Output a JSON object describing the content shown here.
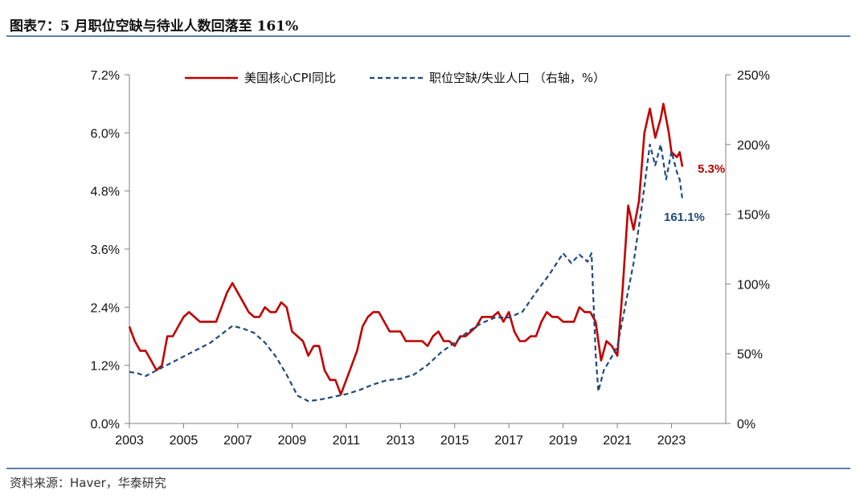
{
  "title": "图表7：5 月职位空缺与待业人数回落至 161%",
  "source": "资料来源：Haver，华泰研究",
  "colors": {
    "cpi": "#c00000",
    "ratio": "#1f497d"
  },
  "chart_data": {
    "type": "line",
    "title": "5 月职位空缺与待业人数回落至 161%",
    "x_ticks": [
      "2003",
      "2005",
      "2007",
      "2009",
      "2011",
      "2013",
      "2015",
      "2017",
      "2019",
      "2021",
      "2023"
    ],
    "xlim": [
      2003,
      2025
    ],
    "left_axis": {
      "ticks": [
        "0.0%",
        "1.2%",
        "2.4%",
        "3.6%",
        "4.8%",
        "6.0%",
        "7.2%"
      ],
      "ylim": [
        0,
        7.2
      ]
    },
    "right_axis": {
      "ticks": [
        "0%",
        "50%",
        "100%",
        "150%",
        "200%",
        "250%"
      ],
      "ylim": [
        0,
        250
      ]
    },
    "legend_location": "top-center",
    "series": [
      {
        "name": "美国核心CPI同比",
        "axis": "left",
        "style": "solid",
        "points": [
          [
            2003.0,
            2.0
          ],
          [
            2003.2,
            1.7
          ],
          [
            2003.4,
            1.5
          ],
          [
            2003.6,
            1.5
          ],
          [
            2003.8,
            1.3
          ],
          [
            2004.0,
            1.1
          ],
          [
            2004.2,
            1.2
          ],
          [
            2004.4,
            1.8
          ],
          [
            2004.6,
            1.8
          ],
          [
            2004.8,
            2.0
          ],
          [
            2005.0,
            2.2
          ],
          [
            2005.2,
            2.3
          ],
          [
            2005.4,
            2.2
          ],
          [
            2005.6,
            2.1
          ],
          [
            2005.8,
            2.1
          ],
          [
            2006.0,
            2.1
          ],
          [
            2006.2,
            2.1
          ],
          [
            2006.4,
            2.4
          ],
          [
            2006.6,
            2.7
          ],
          [
            2006.8,
            2.9
          ],
          [
            2007.0,
            2.7
          ],
          [
            2007.2,
            2.5
          ],
          [
            2007.4,
            2.3
          ],
          [
            2007.6,
            2.2
          ],
          [
            2007.8,
            2.2
          ],
          [
            2008.0,
            2.4
          ],
          [
            2008.2,
            2.3
          ],
          [
            2008.4,
            2.3
          ],
          [
            2008.6,
            2.5
          ],
          [
            2008.8,
            2.4
          ],
          [
            2009.0,
            1.9
          ],
          [
            2009.2,
            1.8
          ],
          [
            2009.4,
            1.7
          ],
          [
            2009.6,
            1.4
          ],
          [
            2009.8,
            1.6
          ],
          [
            2010.0,
            1.6
          ],
          [
            2010.2,
            1.1
          ],
          [
            2010.4,
            0.9
          ],
          [
            2010.6,
            0.9
          ],
          [
            2010.8,
            0.6
          ],
          [
            2011.0,
            0.9
          ],
          [
            2011.2,
            1.2
          ],
          [
            2011.4,
            1.5
          ],
          [
            2011.6,
            2.0
          ],
          [
            2011.8,
            2.2
          ],
          [
            2012.0,
            2.3
          ],
          [
            2012.2,
            2.3
          ],
          [
            2012.4,
            2.1
          ],
          [
            2012.6,
            1.9
          ],
          [
            2012.8,
            1.9
          ],
          [
            2013.0,
            1.9
          ],
          [
            2013.2,
            1.7
          ],
          [
            2013.4,
            1.7
          ],
          [
            2013.6,
            1.7
          ],
          [
            2013.8,
            1.7
          ],
          [
            2014.0,
            1.6
          ],
          [
            2014.2,
            1.8
          ],
          [
            2014.4,
            1.9
          ],
          [
            2014.6,
            1.7
          ],
          [
            2014.8,
            1.7
          ],
          [
            2015.0,
            1.6
          ],
          [
            2015.2,
            1.8
          ],
          [
            2015.4,
            1.8
          ],
          [
            2015.6,
            1.9
          ],
          [
            2015.8,
            2.0
          ],
          [
            2016.0,
            2.2
          ],
          [
            2016.2,
            2.2
          ],
          [
            2016.4,
            2.2
          ],
          [
            2016.6,
            2.3
          ],
          [
            2016.8,
            2.1
          ],
          [
            2017.0,
            2.3
          ],
          [
            2017.2,
            1.9
          ],
          [
            2017.4,
            1.7
          ],
          [
            2017.6,
            1.7
          ],
          [
            2017.8,
            1.8
          ],
          [
            2018.0,
            1.8
          ],
          [
            2018.2,
            2.1
          ],
          [
            2018.4,
            2.3
          ],
          [
            2018.6,
            2.2
          ],
          [
            2018.8,
            2.2
          ],
          [
            2019.0,
            2.1
          ],
          [
            2019.2,
            2.1
          ],
          [
            2019.4,
            2.1
          ],
          [
            2019.6,
            2.4
          ],
          [
            2019.8,
            2.3
          ],
          [
            2020.0,
            2.3
          ],
          [
            2020.2,
            2.1
          ],
          [
            2020.4,
            1.3
          ],
          [
            2020.6,
            1.7
          ],
          [
            2020.8,
            1.6
          ],
          [
            2021.0,
            1.4
          ],
          [
            2021.2,
            2.8
          ],
          [
            2021.4,
            4.5
          ],
          [
            2021.6,
            4.0
          ],
          [
            2021.8,
            4.6
          ],
          [
            2022.0,
            6.0
          ],
          [
            2022.2,
            6.5
          ],
          [
            2022.4,
            5.9
          ],
          [
            2022.6,
            6.3
          ],
          [
            2022.7,
            6.6
          ],
          [
            2022.9,
            6.0
          ],
          [
            2023.0,
            5.6
          ],
          [
            2023.2,
            5.5
          ],
          [
            2023.3,
            5.6
          ],
          [
            2023.4,
            5.3
          ]
        ],
        "end_label": "5.3%"
      },
      {
        "name": "职位空缺/失业人口 （右轴，%）",
        "axis": "right",
        "style": "dashed",
        "points": [
          [
            2003.0,
            37
          ],
          [
            2003.3,
            36
          ],
          [
            2003.6,
            34
          ],
          [
            2004.0,
            38
          ],
          [
            2004.4,
            42
          ],
          [
            2004.8,
            46
          ],
          [
            2005.2,
            50
          ],
          [
            2005.6,
            54
          ],
          [
            2006.0,
            58
          ],
          [
            2006.4,
            64
          ],
          [
            2006.8,
            70
          ],
          [
            2007.2,
            68
          ],
          [
            2007.6,
            65
          ],
          [
            2008.0,
            58
          ],
          [
            2008.4,
            48
          ],
          [
            2008.8,
            35
          ],
          [
            2009.2,
            20
          ],
          [
            2009.6,
            16
          ],
          [
            2010.0,
            17
          ],
          [
            2010.5,
            19
          ],
          [
            2011.0,
            21
          ],
          [
            2011.5,
            24
          ],
          [
            2012.0,
            28
          ],
          [
            2012.5,
            31
          ],
          [
            2013.0,
            32
          ],
          [
            2013.5,
            35
          ],
          [
            2014.0,
            42
          ],
          [
            2014.5,
            51
          ],
          [
            2015.0,
            58
          ],
          [
            2015.5,
            66
          ],
          [
            2016.0,
            72
          ],
          [
            2016.5,
            76
          ],
          [
            2017.0,
            76
          ],
          [
            2017.5,
            80
          ],
          [
            2018.0,
            94
          ],
          [
            2018.5,
            107
          ],
          [
            2019.0,
            122
          ],
          [
            2019.3,
            115
          ],
          [
            2019.6,
            121
          ],
          [
            2019.9,
            116
          ],
          [
            2020.05,
            122
          ],
          [
            2020.2,
            50
          ],
          [
            2020.3,
            23
          ],
          [
            2020.5,
            38
          ],
          [
            2020.8,
            48
          ],
          [
            2021.0,
            55
          ],
          [
            2021.3,
            85
          ],
          [
            2021.6,
            115
          ],
          [
            2021.9,
            155
          ],
          [
            2022.2,
            200
          ],
          [
            2022.4,
            185
          ],
          [
            2022.6,
            200
          ],
          [
            2022.8,
            175
          ],
          [
            2023.0,
            195
          ],
          [
            2023.2,
            180
          ],
          [
            2023.3,
            175
          ],
          [
            2023.4,
            161
          ]
        ],
        "end_label": "161.1%"
      }
    ]
  }
}
